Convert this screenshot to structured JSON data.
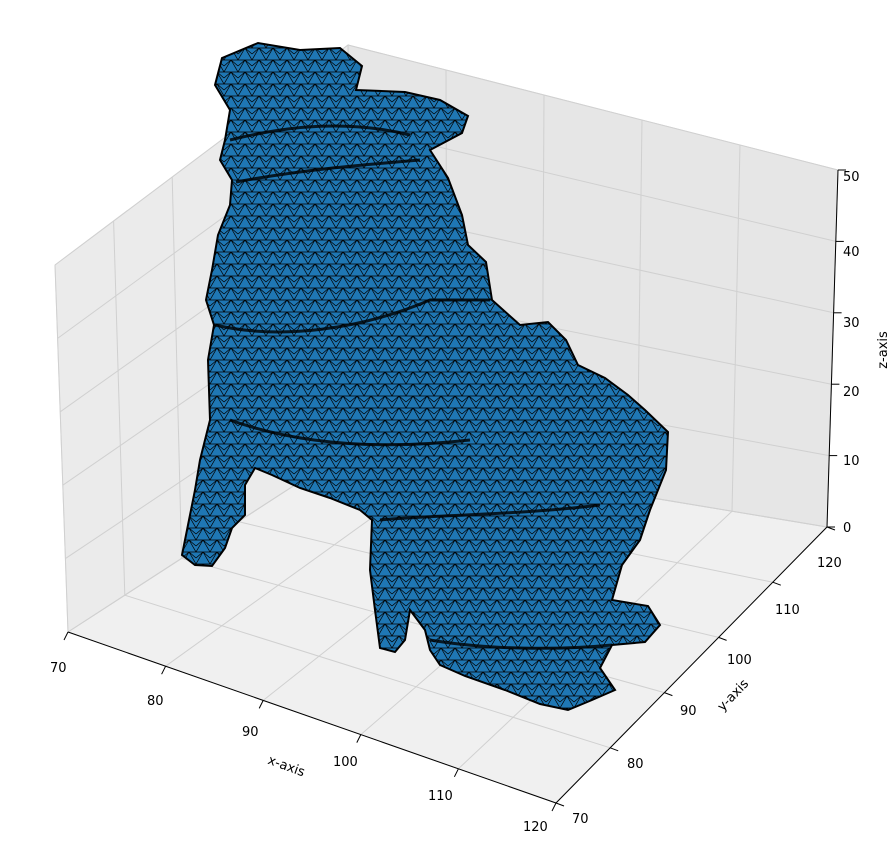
{
  "chart_data": {
    "type": "mesh3d",
    "xlabel": "x-axis",
    "ylabel": "y-axis",
    "zlabel": "z-axis",
    "xlim": [
      70,
      120
    ],
    "ylim": [
      70,
      120
    ],
    "zlim": [
      0,
      50
    ],
    "x_ticks": [
      "70",
      "80",
      "90",
      "100",
      "110",
      "120"
    ],
    "y_ticks": [
      "70",
      "80",
      "90",
      "100",
      "110",
      "120"
    ],
    "z_ticks": [
      "0",
      "10",
      "20",
      "30",
      "40",
      "50"
    ],
    "grid": true,
    "face_color": "#1f77b4",
    "edge_color": "#000000",
    "pane_color": "#f2f2f2"
  }
}
